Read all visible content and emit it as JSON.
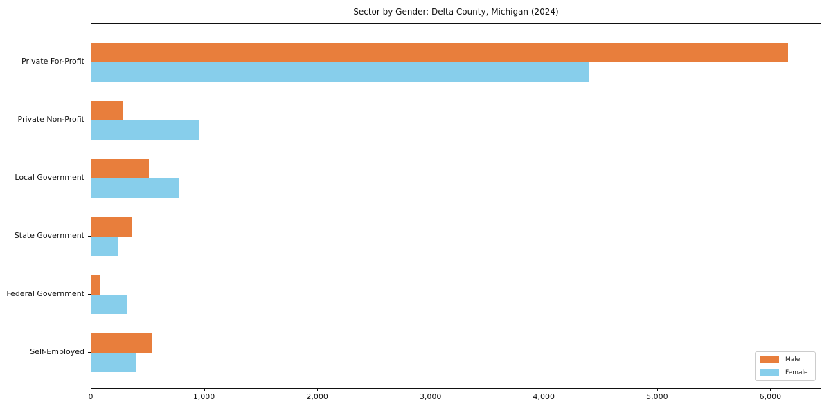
{
  "chart_data": {
    "type": "bar",
    "orientation": "horizontal",
    "title": "Sector by Gender: Delta County, Michigan (2024)",
    "categories": [
      "Private For-Profit",
      "Private Non-Profit",
      "Local Government",
      "State Government",
      "Federal Government",
      "Self-Employed"
    ],
    "series": [
      {
        "name": "Male",
        "color": "#e87e3c",
        "values": [
          6150,
          280,
          510,
          355,
          75,
          540
        ]
      },
      {
        "name": "Female",
        "color": "#87ceeb",
        "values": [
          4390,
          950,
          770,
          235,
          320,
          400
        ]
      }
    ],
    "xlim": [
      0,
      6450
    ],
    "x_ticks": [
      0,
      1000,
      2000,
      3000,
      4000,
      5000,
      6000
    ],
    "x_tick_labels": [
      "0",
      "1,000",
      "2,000",
      "3,000",
      "4,000",
      "5,000",
      "6,000"
    ],
    "ylabel": "",
    "xlabel": "",
    "grid": false,
    "legend_position": "lower right",
    "background": "#ffffff",
    "spine_color": "#111111"
  }
}
